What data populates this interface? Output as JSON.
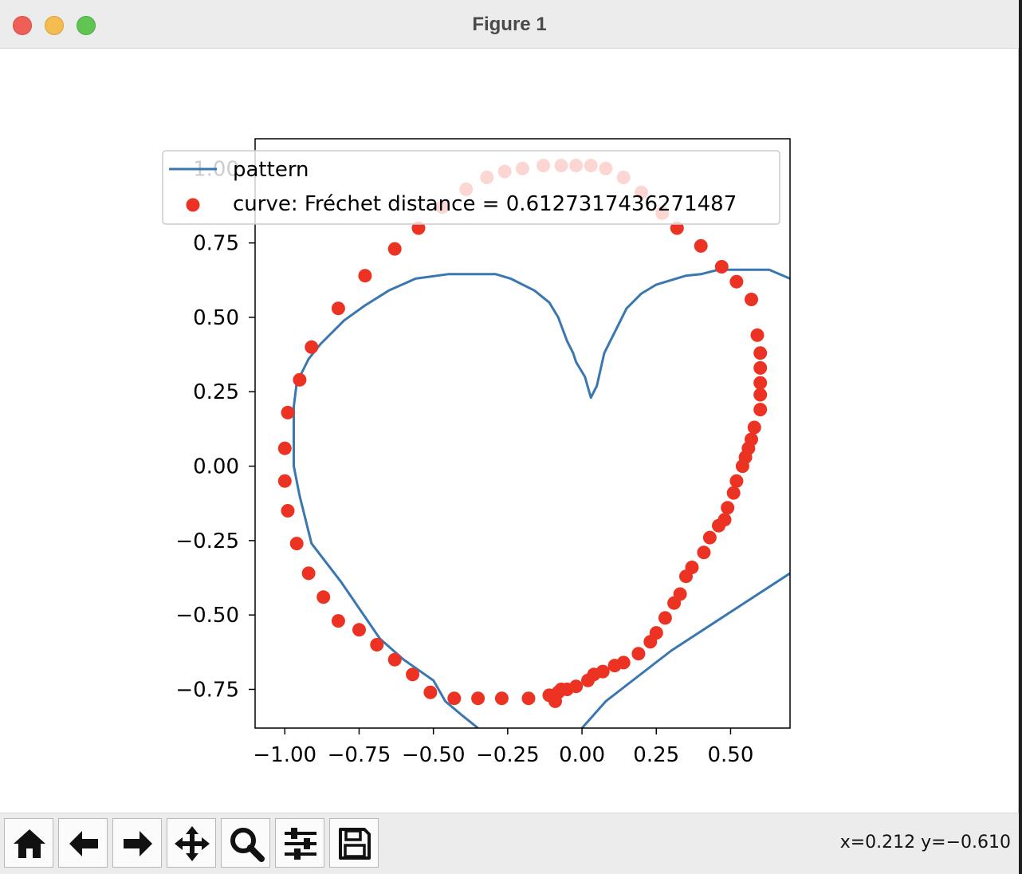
{
  "window": {
    "title": "Figure 1",
    "traffic_lights": [
      "close",
      "minimize",
      "zoom"
    ]
  },
  "toolbar": {
    "buttons": [
      {
        "name": "home-button",
        "icon": "home-icon"
      },
      {
        "name": "back-button",
        "icon": "arrow-left-icon"
      },
      {
        "name": "forward-button",
        "icon": "arrow-right-icon"
      },
      {
        "name": "pan-button",
        "icon": "move-icon"
      },
      {
        "name": "zoom-button",
        "icon": "magnifier-icon"
      },
      {
        "name": "configure-subplots-button",
        "icon": "sliders-icon"
      },
      {
        "name": "save-button",
        "icon": "floppy-disk-icon"
      }
    ],
    "coords": "x=0.212 y=−0.610"
  },
  "chart_data": {
    "type": "line+scatter",
    "xlim": [
      -1.1,
      0.7
    ],
    "ylim": [
      -0.88,
      1.1
    ],
    "x_ticks": [
      {
        "value": -1.0,
        "label": "−1.00"
      },
      {
        "value": -0.75,
        "label": "−0.75"
      },
      {
        "value": -0.5,
        "label": "−0.50"
      },
      {
        "value": -0.25,
        "label": "−0.25"
      },
      {
        "value": 0.0,
        "label": "0.00"
      },
      {
        "value": 0.25,
        "label": "0.25"
      },
      {
        "value": 0.5,
        "label": "0.50"
      }
    ],
    "y_ticks": [
      {
        "value": -0.75,
        "label": "−0.75"
      },
      {
        "value": -0.5,
        "label": "−0.50"
      },
      {
        "value": -0.25,
        "label": "−0.25"
      },
      {
        "value": 0.0,
        "label": "0.00"
      },
      {
        "value": 0.25,
        "label": "0.25"
      },
      {
        "value": 0.5,
        "label": "0.50"
      },
      {
        "value": 0.75,
        "label": "0.75"
      },
      {
        "value": 1.0,
        "label": "1.00"
      }
    ],
    "legend": {
      "placement": "top",
      "entries": [
        {
          "label": "pattern",
          "marker": "line",
          "color": "#3a76af"
        },
        {
          "label": "curve: Fréchet distance = 0.6127317436271487",
          "marker": "circle",
          "color": "#ec3323"
        }
      ]
    },
    "series": [
      {
        "name": "pattern",
        "kind": "line",
        "color": "#3a76af",
        "points": [
          [
            0.15,
            -1.0
          ],
          [
            0.0,
            -0.88
          ],
          [
            0.08,
            -0.79
          ],
          [
            0.3,
            -0.62
          ],
          [
            0.7,
            -0.36
          ]
        ],
        "points2": [
          [
            -0.35,
            -0.88
          ],
          [
            -0.4,
            -0.84
          ],
          [
            -0.46,
            -0.79
          ],
          [
            -0.5,
            -0.72
          ],
          [
            -0.6,
            -0.65
          ],
          [
            -0.68,
            -0.58
          ],
          [
            -0.81,
            -0.39
          ],
          [
            -0.91,
            -0.26
          ],
          [
            -0.95,
            -0.1
          ],
          [
            -0.97,
            0.0
          ],
          [
            -0.97,
            0.2
          ],
          [
            -0.96,
            0.28
          ],
          [
            -0.92,
            0.36
          ],
          [
            -0.88,
            0.41
          ],
          [
            -0.8,
            0.49
          ],
          [
            -0.73,
            0.54
          ],
          [
            -0.65,
            0.59
          ],
          [
            -0.56,
            0.63
          ],
          [
            -0.45,
            0.645
          ],
          [
            -0.38,
            0.645
          ],
          [
            -0.29,
            0.645
          ],
          [
            -0.24,
            0.63
          ],
          [
            -0.16,
            0.59
          ],
          [
            -0.11,
            0.55
          ],
          [
            -0.08,
            0.5
          ],
          [
            -0.05,
            0.42
          ],
          [
            -0.03,
            0.38
          ],
          [
            -0.02,
            0.35
          ],
          [
            0.01,
            0.3
          ],
          [
            0.03,
            0.23
          ],
          [
            0.05,
            0.27
          ],
          [
            0.075,
            0.38
          ],
          [
            0.11,
            0.45
          ],
          [
            0.15,
            0.53
          ],
          [
            0.2,
            0.58
          ],
          [
            0.25,
            0.61
          ],
          [
            0.35,
            0.64
          ],
          [
            0.4,
            0.645
          ],
          [
            0.46,
            0.66
          ],
          [
            0.63,
            0.66
          ],
          [
            0.7,
            0.63
          ]
        ]
      },
      {
        "name": "curve",
        "kind": "scatter",
        "color": "#ec3323",
        "points": [
          [
            -0.35,
            -0.78
          ],
          [
            -0.43,
            -0.78
          ],
          [
            -0.51,
            -0.76
          ],
          [
            -0.57,
            -0.7
          ],
          [
            -0.63,
            -0.65
          ],
          [
            -0.69,
            -0.6
          ],
          [
            -0.75,
            -0.55
          ],
          [
            -0.82,
            -0.52
          ],
          [
            -0.87,
            -0.44
          ],
          [
            -0.92,
            -0.36
          ],
          [
            -0.96,
            -0.26
          ],
          [
            -0.99,
            -0.15
          ],
          [
            -1.0,
            -0.05
          ],
          [
            -1.0,
            0.06
          ],
          [
            -0.99,
            0.18
          ],
          [
            -0.95,
            0.29
          ],
          [
            -0.91,
            0.4
          ],
          [
            -0.82,
            0.53
          ],
          [
            -0.73,
            0.64
          ],
          [
            -0.63,
            0.73
          ],
          [
            -0.55,
            0.8
          ],
          [
            -0.47,
            0.87
          ],
          [
            -0.39,
            0.93
          ],
          [
            -0.32,
            0.97
          ],
          [
            -0.26,
            0.99
          ],
          [
            -0.2,
            1.0
          ],
          [
            -0.13,
            1.01
          ],
          [
            -0.07,
            1.01
          ],
          [
            -0.02,
            1.01
          ],
          [
            0.03,
            1.01
          ],
          [
            0.08,
            1.0
          ],
          [
            0.14,
            0.97
          ],
          [
            0.2,
            0.92
          ],
          [
            0.27,
            0.85
          ],
          [
            0.32,
            0.8
          ],
          [
            0.4,
            0.74
          ],
          [
            0.47,
            0.67
          ],
          [
            0.52,
            0.62
          ],
          [
            0.57,
            0.56
          ],
          [
            0.59,
            0.44
          ],
          [
            0.6,
            0.38
          ],
          [
            0.6,
            0.33
          ],
          [
            0.6,
            0.28
          ],
          [
            0.6,
            0.24
          ],
          [
            0.6,
            0.19
          ],
          [
            0.58,
            0.13
          ],
          [
            0.57,
            0.09
          ],
          [
            0.56,
            0.06
          ],
          [
            0.55,
            0.03
          ],
          [
            0.54,
            0.0
          ],
          [
            0.52,
            -0.05
          ],
          [
            0.51,
            -0.09
          ],
          [
            0.49,
            -0.14
          ],
          [
            0.48,
            -0.18
          ],
          [
            0.46,
            -0.2
          ],
          [
            0.43,
            -0.24
          ],
          [
            0.41,
            -0.29
          ],
          [
            0.37,
            -0.34
          ],
          [
            0.35,
            -0.37
          ],
          [
            0.33,
            -0.43
          ],
          [
            0.31,
            -0.46
          ],
          [
            0.28,
            -0.51
          ],
          [
            0.25,
            -0.56
          ],
          [
            0.23,
            -0.59
          ],
          [
            0.19,
            -0.63
          ],
          [
            0.14,
            -0.66
          ],
          [
            0.11,
            -0.67
          ],
          [
            0.07,
            -0.69
          ],
          [
            0.04,
            -0.7
          ],
          [
            0.02,
            -0.72
          ],
          [
            -0.02,
            -0.74
          ],
          [
            -0.05,
            -0.75
          ],
          [
            -0.08,
            -0.76
          ],
          [
            -0.11,
            -0.77
          ],
          [
            -0.18,
            -0.78
          ],
          [
            -0.09,
            -0.79
          ],
          [
            -0.07,
            -0.75
          ],
          [
            -0.27,
            -0.78
          ]
        ]
      }
    ]
  }
}
